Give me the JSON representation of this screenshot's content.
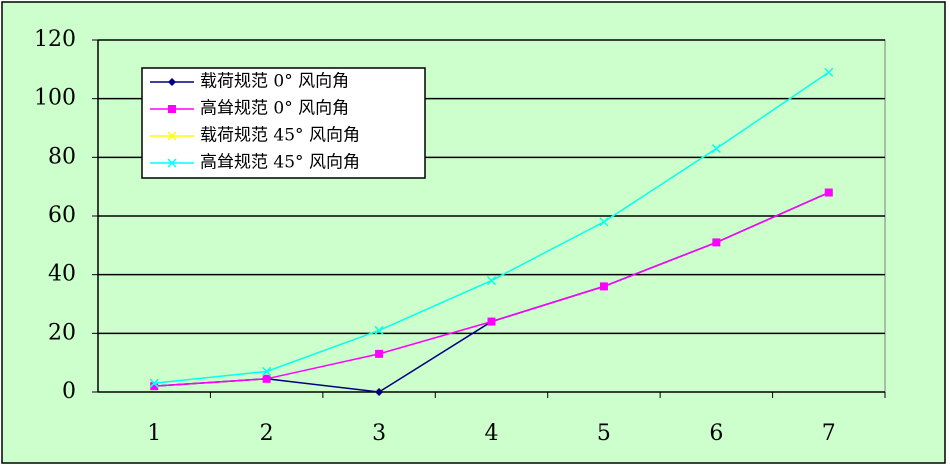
{
  "chart_data": {
    "type": "line",
    "categories": [
      "1",
      "2",
      "3",
      "4",
      "5",
      "6",
      "7"
    ],
    "series": [
      {
        "name": "载荷规范 0° 风向角",
        "color": "#000080",
        "marker": "diamond",
        "values": [
          2,
          4.5,
          0,
          24,
          36,
          51,
          68
        ]
      },
      {
        "name": "高耸规范 0° 风向角",
        "color": "#ff00ff",
        "marker": "square",
        "values": [
          2,
          4.5,
          13,
          24,
          36,
          51,
          68
        ]
      },
      {
        "name": "载荷规范 45° 风向角",
        "color": "#ffff00",
        "marker": "x",
        "values": [
          3,
          7,
          21,
          38,
          58,
          83,
          109
        ]
      },
      {
        "name": "高耸规范 45° 风向角",
        "color": "#00ffff",
        "marker": "x",
        "values": [
          3,
          7,
          21,
          38,
          58,
          83,
          109
        ]
      }
    ],
    "ylim": [
      0,
      120
    ],
    "yticks": [
      0,
      20,
      40,
      60,
      80,
      100,
      120
    ],
    "grid": true,
    "legend": "top-left"
  }
}
